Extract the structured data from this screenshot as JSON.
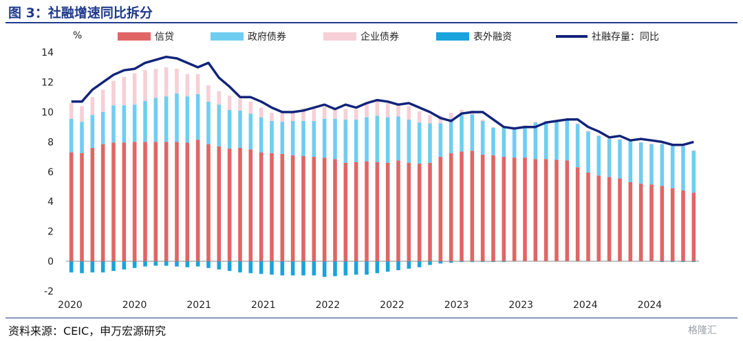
{
  "figure_title": "图 3：社融增速同比拆分",
  "source": "资料来源：CEIC，申万宏源研究",
  "watermark": "格隆汇",
  "colors": {
    "title": "#1f3a8a",
    "loans": "#e06666",
    "gov_bonds": "#6fcdf2",
    "corp_bonds": "#f7cfd6",
    "off_balance": "#1aa3dc",
    "stock_growth": "#12247a"
  },
  "chart_data": {
    "type": "bar",
    "stacked": true,
    "yunit": "%",
    "ylim": [
      -2,
      14
    ],
    "yticks": [
      -2,
      0,
      2,
      4,
      6,
      8,
      10,
      12,
      14
    ],
    "xticklabels": [
      "2020",
      "2020",
      "2021",
      "2021",
      "2022",
      "2022",
      "2023",
      "2023",
      "2024",
      "2024"
    ],
    "legend_position": "top",
    "series": [
      {
        "name": "信贷",
        "type": "bar",
        "values": [
          7.3,
          7.25,
          7.6,
          7.85,
          7.95,
          7.95,
          8.0,
          8.0,
          8.0,
          8.0,
          8.0,
          7.95,
          8.15,
          7.85,
          7.7,
          7.55,
          7.6,
          7.5,
          7.3,
          7.25,
          7.2,
          7.1,
          7.05,
          7.0,
          6.95,
          6.85,
          6.6,
          6.65,
          6.7,
          6.65,
          6.6,
          6.75,
          6.6,
          6.55,
          6.6,
          7.0,
          7.25,
          7.35,
          7.4,
          7.15,
          7.1,
          7.0,
          6.95,
          6.95,
          6.85,
          6.85,
          6.8,
          6.75,
          6.3,
          5.95,
          5.75,
          5.65,
          5.55,
          5.3,
          5.2,
          5.15,
          5.05,
          4.9,
          4.75,
          4.6
        ]
      },
      {
        "name": "政府债券",
        "type": "bar",
        "values": [
          2.25,
          2.1,
          2.2,
          2.15,
          2.5,
          2.5,
          2.5,
          2.75,
          2.95,
          3.05,
          3.25,
          3.1,
          3.05,
          2.85,
          2.8,
          2.6,
          2.5,
          2.4,
          2.35,
          2.15,
          2.15,
          2.3,
          2.35,
          2.4,
          2.6,
          2.7,
          2.9,
          2.85,
          2.95,
          3.1,
          3.05,
          2.95,
          2.9,
          2.75,
          2.65,
          2.25,
          2.3,
          2.45,
          2.45,
          2.25,
          1.85,
          1.95,
          2.0,
          2.1,
          2.45,
          2.5,
          2.6,
          2.8,
          2.9,
          2.75,
          2.65,
          2.55,
          2.6,
          2.75,
          2.75,
          2.7,
          2.8,
          2.9,
          2.95,
          2.8
        ]
      },
      {
        "name": "企业债券",
        "type": "bar",
        "values": [
          1.05,
          1.05,
          1.2,
          1.5,
          1.65,
          1.9,
          2.1,
          2.05,
          1.95,
          1.95,
          1.65,
          1.5,
          1.35,
          1.1,
          0.9,
          0.95,
          0.8,
          0.8,
          0.65,
          0.55,
          0.6,
          0.65,
          0.85,
          0.95,
          0.8,
          0.7,
          0.7,
          0.7,
          0.9,
          1.05,
          0.95,
          0.85,
          0.9,
          0.75,
          0.55,
          0.5,
          0.4,
          0.35,
          0.25,
          0.1,
          0.05,
          0.05,
          0.05,
          0.05,
          0.05,
          0.05,
          0.05,
          0.05,
          0.05,
          0.05,
          0.05,
          0.05,
          0.05,
          0.05,
          0.05,
          0.05,
          0.05,
          0.05,
          0.05,
          0.05
        ]
      },
      {
        "name": "表外融资",
        "type": "bar",
        "values": [
          -0.75,
          -0.8,
          -0.75,
          -0.75,
          -0.65,
          -0.55,
          -0.45,
          -0.35,
          -0.3,
          -0.3,
          -0.35,
          -0.4,
          -0.35,
          -0.45,
          -0.55,
          -0.65,
          -0.75,
          -0.8,
          -0.85,
          -0.9,
          -0.95,
          -0.95,
          -0.95,
          -0.95,
          -1.05,
          -1.0,
          -0.95,
          -0.9,
          -0.9,
          -0.8,
          -0.7,
          -0.6,
          -0.5,
          -0.4,
          -0.25,
          -0.15,
          -0.1,
          -0.05,
          -0.05,
          -0.05,
          -0.05,
          -0.05,
          0,
          0,
          0,
          0,
          0,
          0,
          0,
          0,
          0,
          0,
          0,
          0,
          0,
          0,
          -0.05,
          -0.05,
          -0.05,
          -0.05
        ]
      },
      {
        "name": "社融存量：同比",
        "type": "line",
        "values": [
          10.7,
          10.7,
          11.5,
          12.0,
          12.5,
          12.8,
          12.9,
          13.3,
          13.5,
          13.7,
          13.6,
          13.3,
          13.0,
          13.3,
          12.3,
          11.7,
          11.0,
          11.0,
          10.7,
          10.3,
          10.0,
          10.0,
          10.1,
          10.3,
          10.5,
          10.2,
          10.5,
          10.3,
          10.6,
          10.8,
          10.7,
          10.5,
          10.6,
          10.3,
          10.0,
          9.6,
          9.4,
          9.9,
          10.0,
          10.0,
          9.5,
          9.0,
          8.9,
          9.0,
          9.0,
          9.3,
          9.4,
          9.5,
          9.5,
          9.0,
          8.7,
          8.3,
          8.4,
          8.1,
          8.2,
          8.1,
          8.0,
          7.8,
          7.8,
          8.0
        ]
      }
    ]
  }
}
